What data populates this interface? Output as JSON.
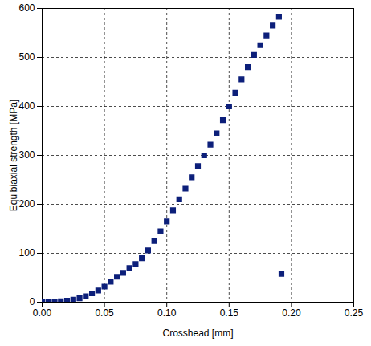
{
  "chart_data": {
    "type": "scatter",
    "xlabel": "Crosshead [mm]",
    "ylabel": "Equibiaxial strength [MPa]",
    "xlim": [
      0,
      0.25
    ],
    "ylim": [
      0,
      600
    ],
    "xticks": [
      {
        "value": 0,
        "label": "0.00"
      },
      0.05,
      {
        "value": 0.1,
        "label": "0.10"
      },
      0.15,
      {
        "value": 0.2,
        "label": "0.20"
      },
      0.25
    ],
    "yticks": [
      0,
      100,
      200,
      300,
      400,
      500,
      600
    ],
    "grid": true,
    "series": [
      {
        "color": "#0c1f7a",
        "marker": "square",
        "x": [
          0,
          0.005,
          0.01,
          0.015,
          0.02,
          0.025,
          0.03,
          0.035,
          0.04,
          0.045,
          0.05,
          0.055,
          0.06,
          0.065,
          0.07,
          0.075,
          0.08,
          0.085,
          0.09,
          0.095,
          0.1,
          0.105,
          0.11,
          0.115,
          0.12,
          0.125,
          0.13,
          0.135,
          0.14,
          0.145,
          0.15,
          0.155,
          0.16,
          0.165,
          0.17,
          0.175,
          0.18,
          0.185,
          0.19,
          0.192
        ],
        "values": [
          0,
          0.5,
          1,
          2,
          3,
          5,
          8,
          12,
          18,
          24,
          32,
          42,
          52,
          60,
          70,
          78,
          90,
          106,
          125,
          145,
          165,
          188,
          210,
          232,
          255,
          278,
          300,
          322,
          345,
          372,
          400,
          428,
          455,
          480,
          505,
          525,
          545,
          565,
          583,
          58
        ]
      }
    ]
  }
}
